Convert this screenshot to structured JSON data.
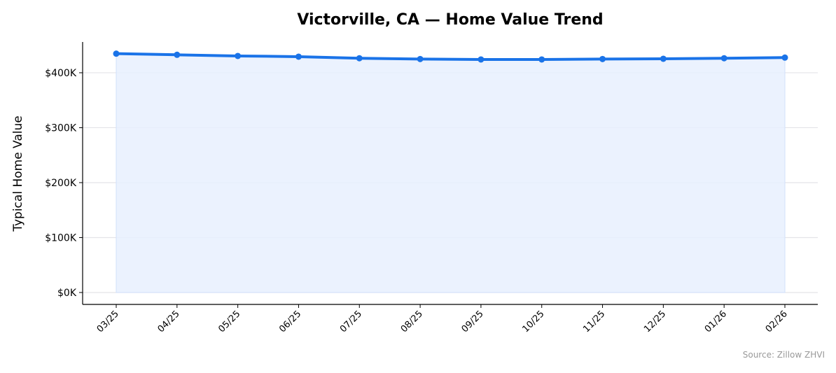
{
  "chart_data": {
    "type": "area",
    "title": "Victorville, CA — Home Value Trend",
    "xlabel": "",
    "ylabel": "Typical Home Value",
    "categories": [
      "03/25",
      "04/25",
      "05/25",
      "06/25",
      "07/25",
      "08/25",
      "09/25",
      "10/25",
      "11/25",
      "12/25",
      "01/26",
      "02/26"
    ],
    "values": [
      434800,
      432700,
      430600,
      429300,
      426400,
      425000,
      424200,
      424200,
      425000,
      425500,
      426400,
      427600
    ],
    "yticks": [
      0,
      100000,
      200000,
      300000,
      400000
    ],
    "ytick_labels": [
      "$0K",
      "$100K",
      "$200K",
      "$300K",
      "$400K"
    ],
    "ylim": [
      -21700,
      456000
    ],
    "grid": "horizontal",
    "line_color": "#1a73e8",
    "fill_color": "#e8f0fe",
    "source_note": "Source: Zillow ZHVI"
  }
}
